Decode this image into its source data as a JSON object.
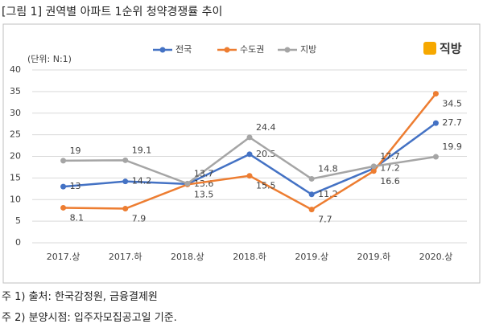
{
  "title": "[그림 1] 권역별 아파트 1순위 청약경쟁률 추이",
  "chart_data": {
    "type": "line",
    "unit_label": "(단위: N:1)",
    "logo": "직방",
    "categories": [
      "2017.상",
      "2017.하",
      "2018.상",
      "2018.하",
      "2019.상",
      "2019.하",
      "2020.상"
    ],
    "series": [
      {
        "name": "전국",
        "color": "#4472c4",
        "values": [
          13,
          14.2,
          13.6,
          20.5,
          11.2,
          17.2,
          27.7
        ]
      },
      {
        "name": "수도권",
        "color": "#ed7d31",
        "values": [
          8.1,
          7.9,
          13.5,
          15.5,
          7.7,
          16.6,
          34.5
        ]
      },
      {
        "name": "지방",
        "color": "#a5a5a5",
        "values": [
          19,
          19.1,
          13.7,
          24.4,
          14.8,
          17.7,
          19.9
        ]
      }
    ],
    "ylim": [
      0,
      40
    ],
    "yticks": [
      0,
      5,
      10,
      15,
      20,
      25,
      30,
      35,
      40
    ],
    "grid": true,
    "legend": "top"
  },
  "notes": [
    "주 1) 출처: 한국감정원, 금융결제원",
    "주 2) 분양시점: 입주자모집공고일 기준."
  ]
}
